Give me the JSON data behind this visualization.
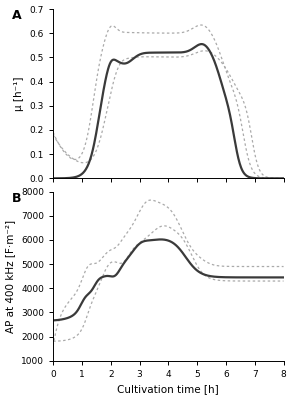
{
  "panel_A_label": "A",
  "panel_B_label": "B",
  "ylabel_A": "μ [h⁻¹]",
  "ylabel_B": "AP at 400 kHz [F·m⁻²]",
  "xlabel": "Cultivation time [h]",
  "xlim": [
    0,
    8
  ],
  "ylim_A": [
    0.0,
    0.7
  ],
  "ylim_B": [
    1000,
    8000
  ],
  "yticks_A": [
    0.0,
    0.1,
    0.2,
    0.3,
    0.4,
    0.5,
    0.6,
    0.7
  ],
  "yticks_B": [
    1000,
    2000,
    3000,
    4000,
    5000,
    6000,
    7000,
    8000
  ],
  "xticks": [
    0,
    1,
    2,
    3,
    4,
    5,
    6,
    7,
    8
  ],
  "line_solid_color": "#3a3a3a",
  "line_dotted_color": "#aaaaaa"
}
